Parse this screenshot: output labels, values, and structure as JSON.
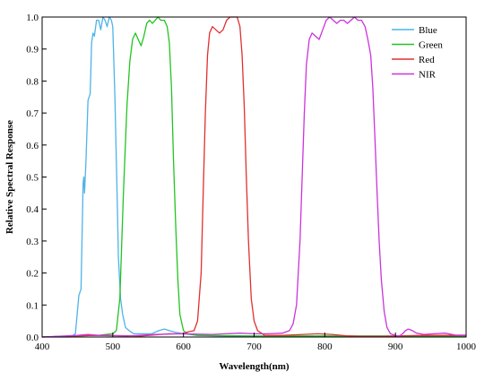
{
  "chart_data": {
    "type": "line",
    "xlabel": "Wavelength(nm)",
    "ylabel": "Relative Spectral Response",
    "xlim": [
      400,
      1000
    ],
    "ylim": [
      0,
      1.0
    ],
    "xticks": [
      400,
      500,
      600,
      700,
      800,
      900,
      1000
    ],
    "xtick_labels": [
      "400",
      "500",
      "600",
      "700",
      "800",
      "900",
      "1000"
    ],
    "yticks": [
      0,
      0.1,
      0.2,
      0.3,
      0.4,
      0.5,
      0.6,
      0.7,
      0.8,
      0.9,
      1.0
    ],
    "ytick_labels": [
      "0.0",
      "0.1",
      "0.2",
      "0.3",
      "0.4",
      "0.5",
      "0.6",
      "0.7",
      "0.8",
      "0.9",
      "1.0"
    ],
    "grid": false,
    "legend_position": "top-right",
    "series": [
      {
        "name": "Blue",
        "color": "#4fb3e8",
        "points": [
          [
            400,
            0
          ],
          [
            440,
            0
          ],
          [
            447,
            0.01
          ],
          [
            452,
            0.13
          ],
          [
            455,
            0.15
          ],
          [
            458,
            0.48
          ],
          [
            459,
            0.5
          ],
          [
            460,
            0.45
          ],
          [
            462,
            0.55
          ],
          [
            465,
            0.74
          ],
          [
            468,
            0.76
          ],
          [
            470,
            0.92
          ],
          [
            472,
            0.95
          ],
          [
            474,
            0.94
          ],
          [
            477,
            0.99
          ],
          [
            480,
            0.99
          ],
          [
            483,
            0.96
          ],
          [
            486,
            1.0
          ],
          [
            489,
            0.99
          ],
          [
            492,
            0.97
          ],
          [
            495,
            1.0
          ],
          [
            498,
            0.99
          ],
          [
            500,
            0.97
          ],
          [
            503,
            0.75
          ],
          [
            506,
            0.45
          ],
          [
            508,
            0.25
          ],
          [
            511,
            0.12
          ],
          [
            514,
            0.07
          ],
          [
            518,
            0.03
          ],
          [
            523,
            0.02
          ],
          [
            530,
            0.01
          ],
          [
            540,
            0.01
          ],
          [
            555,
            0.01
          ],
          [
            565,
            0.02
          ],
          [
            573,
            0.025
          ],
          [
            580,
            0.02
          ],
          [
            588,
            0.015
          ],
          [
            600,
            0.01
          ],
          [
            620,
            0.005
          ],
          [
            660,
            0.003
          ],
          [
            1000,
            0.003
          ]
        ]
      },
      {
        "name": "Green",
        "color": "#22c422",
        "points": [
          [
            400,
            0
          ],
          [
            470,
            0.005
          ],
          [
            480,
            0.005
          ],
          [
            490,
            0.008
          ],
          [
            500,
            0.01
          ],
          [
            505,
            0.02
          ],
          [
            510,
            0.12
          ],
          [
            515,
            0.45
          ],
          [
            520,
            0.72
          ],
          [
            524,
            0.86
          ],
          [
            528,
            0.93
          ],
          [
            532,
            0.95
          ],
          [
            536,
            0.93
          ],
          [
            540,
            0.91
          ],
          [
            544,
            0.94
          ],
          [
            548,
            0.98
          ],
          [
            552,
            0.99
          ],
          [
            556,
            0.98
          ],
          [
            560,
            0.99
          ],
          [
            564,
            1.0
          ],
          [
            568,
            0.99
          ],
          [
            573,
            0.99
          ],
          [
            577,
            0.97
          ],
          [
            580,
            0.92
          ],
          [
            583,
            0.78
          ],
          [
            586,
            0.55
          ],
          [
            589,
            0.35
          ],
          [
            592,
            0.18
          ],
          [
            595,
            0.07
          ],
          [
            600,
            0.02
          ],
          [
            606,
            0.01
          ],
          [
            620,
            0.005
          ],
          [
            700,
            0.003
          ],
          [
            800,
            0.003
          ],
          [
            1000,
            0.003
          ]
        ]
      },
      {
        "name": "Red",
        "color": "#e03030",
        "points": [
          [
            400,
            0
          ],
          [
            470,
            0.005
          ],
          [
            490,
            0.005
          ],
          [
            540,
            0.003
          ],
          [
            580,
            0.01
          ],
          [
            598,
            0.01
          ],
          [
            605,
            0.015
          ],
          [
            615,
            0.02
          ],
          [
            620,
            0.05
          ],
          [
            625,
            0.2
          ],
          [
            628,
            0.45
          ],
          [
            631,
            0.7
          ],
          [
            634,
            0.88
          ],
          [
            637,
            0.95
          ],
          [
            641,
            0.97
          ],
          [
            646,
            0.96
          ],
          [
            651,
            0.95
          ],
          [
            656,
            0.96
          ],
          [
            661,
            0.99
          ],
          [
            666,
            1.0
          ],
          [
            671,
            1.0
          ],
          [
            676,
            1.0
          ],
          [
            680,
            0.97
          ],
          [
            683,
            0.88
          ],
          [
            686,
            0.72
          ],
          [
            689,
            0.5
          ],
          [
            692,
            0.3
          ],
          [
            696,
            0.12
          ],
          [
            700,
            0.05
          ],
          [
            705,
            0.02
          ],
          [
            715,
            0.005
          ],
          [
            740,
            0.005
          ],
          [
            770,
            0.008
          ],
          [
            790,
            0.01
          ],
          [
            810,
            0.008
          ],
          [
            830,
            0.004
          ],
          [
            850,
            0.002
          ],
          [
            880,
            0.002
          ],
          [
            900,
            0.003
          ],
          [
            940,
            0.005
          ],
          [
            1000,
            0.005
          ]
        ]
      },
      {
        "name": "NIR",
        "color": "#cc33dd",
        "points": [
          [
            400,
            0
          ],
          [
            450,
            0.005
          ],
          [
            465,
            0.008
          ],
          [
            480,
            0.005
          ],
          [
            520,
            0.003
          ],
          [
            560,
            0.008
          ],
          [
            600,
            0.01
          ],
          [
            640,
            0.008
          ],
          [
            660,
            0.01
          ],
          [
            680,
            0.012
          ],
          [
            700,
            0.01
          ],
          [
            720,
            0.01
          ],
          [
            740,
            0.012
          ],
          [
            750,
            0.02
          ],
          [
            755,
            0.04
          ],
          [
            760,
            0.1
          ],
          [
            765,
            0.3
          ],
          [
            768,
            0.5
          ],
          [
            771,
            0.7
          ],
          [
            774,
            0.85
          ],
          [
            778,
            0.93
          ],
          [
            782,
            0.95
          ],
          [
            787,
            0.94
          ],
          [
            792,
            0.93
          ],
          [
            797,
            0.96
          ],
          [
            802,
            0.99
          ],
          [
            807,
            1.0
          ],
          [
            812,
            0.99
          ],
          [
            817,
            0.98
          ],
          [
            822,
            0.99
          ],
          [
            827,
            0.99
          ],
          [
            832,
            0.98
          ],
          [
            837,
            0.99
          ],
          [
            842,
            1.0
          ],
          [
            847,
            0.99
          ],
          [
            852,
            0.99
          ],
          [
            857,
            0.97
          ],
          [
            861,
            0.93
          ],
          [
            865,
            0.88
          ],
          [
            868,
            0.78
          ],
          [
            871,
            0.62
          ],
          [
            874,
            0.45
          ],
          [
            877,
            0.3
          ],
          [
            880,
            0.18
          ],
          [
            884,
            0.08
          ],
          [
            888,
            0.03
          ],
          [
            893,
            0.01
          ],
          [
            900,
            0.005
          ],
          [
            905,
            0.002
          ],
          [
            910,
            0.01
          ],
          [
            914,
            0.02
          ],
          [
            918,
            0.025
          ],
          [
            924,
            0.02
          ],
          [
            930,
            0.012
          ],
          [
            940,
            0.008
          ],
          [
            955,
            0.01
          ],
          [
            970,
            0.012
          ],
          [
            985,
            0.006
          ],
          [
            1000,
            0.006
          ]
        ]
      }
    ]
  }
}
